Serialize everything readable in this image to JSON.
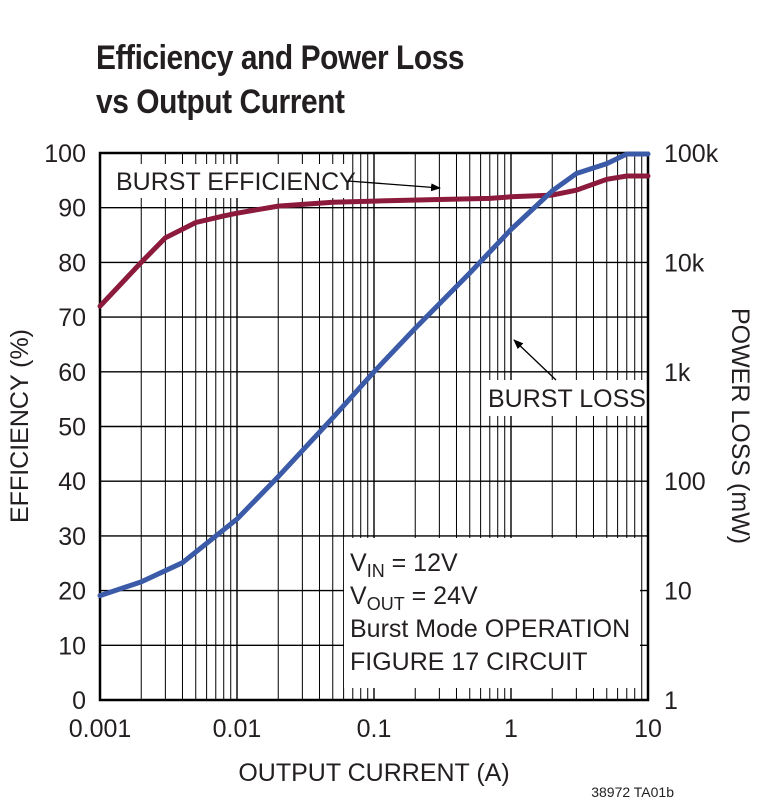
{
  "title_line1": "Efficiency and Power Loss",
  "title_line2": "vs Output Current",
  "figure_id": "38972 TA01b",
  "colors": {
    "efficiency": "#8b1a3c",
    "loss": "#3b5ba8",
    "grid": "#000000",
    "text": "#231f20"
  },
  "chart_data": {
    "type": "line",
    "title": "Efficiency and Power Loss vs Output Current",
    "xlabel": "OUTPUT CURRENT (A)",
    "ylabel": "EFFICIENCY (%)",
    "y2label": "POWER LOSS (mW)",
    "xscale": "log",
    "xlim": [
      0.001,
      10
    ],
    "ylim": [
      0,
      100
    ],
    "y2scale": "log",
    "y2lim": [
      1,
      100000
    ],
    "grid": true,
    "xticks": [
      "0.001",
      "0.01",
      "0.1",
      "1",
      "10"
    ],
    "yticks": [
      "0",
      "10",
      "20",
      "30",
      "40",
      "50",
      "60",
      "70",
      "80",
      "90",
      "100"
    ],
    "y2ticks": [
      "1",
      "10",
      "100",
      "1k",
      "10k",
      "100k"
    ],
    "series": [
      {
        "name": "BURST EFFICIENCY",
        "axis": "left",
        "x": [
          0.001,
          0.002,
          0.003,
          0.005,
          0.008,
          0.01,
          0.02,
          0.05,
          0.1,
          0.3,
          0.7,
          1,
          2,
          3,
          5,
          7,
          10
        ],
        "y": [
          72,
          80,
          84.5,
          87.3,
          88.5,
          89,
          90.3,
          91,
          91.2,
          91.5,
          91.7,
          92,
          92.3,
          93.2,
          95.2,
          95.8,
          95.8
        ]
      },
      {
        "name": "BURST LOSS",
        "axis": "right",
        "x": [
          0.001,
          0.002,
          0.004,
          0.01,
          0.02,
          0.05,
          0.1,
          0.2,
          0.5,
          1,
          2,
          3,
          5,
          7,
          10
        ],
        "y": [
          9,
          12,
          18,
          45,
          110,
          380,
          1000,
          2500,
          8000,
          20000,
          45000,
          65000,
          80000,
          110000,
          170000
        ]
      }
    ],
    "annotations": [
      {
        "text": "BURST EFFICIENCY"
      },
      {
        "text": "BURST LOSS"
      }
    ],
    "conditions": [
      {
        "main": "V",
        "sub": "IN",
        "rest": " = 12V"
      },
      {
        "main": "V",
        "sub": "OUT",
        "rest": " = 24V"
      },
      {
        "main": "Burst Mode OPERATION",
        "sub": "",
        "rest": ""
      },
      {
        "main": "FIGURE 17 CIRCUIT",
        "sub": "",
        "rest": ""
      }
    ]
  }
}
